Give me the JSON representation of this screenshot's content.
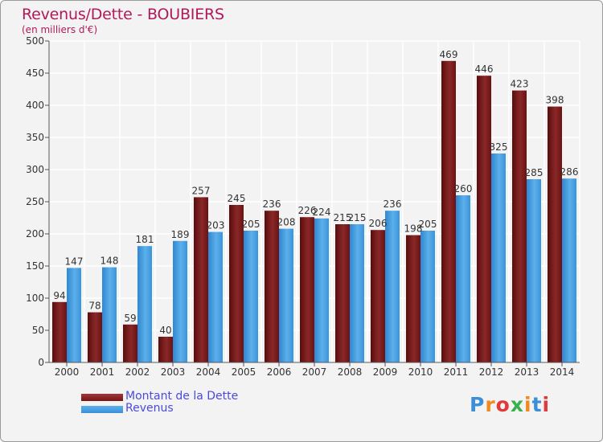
{
  "header": {
    "title": "Revenus/Dette - BOUBIERS",
    "subtitle": "(en milliers d'€)"
  },
  "logo": {
    "text": "Proxiti",
    "letters": [
      "P",
      "r",
      "o",
      "x",
      "i",
      "t",
      "i"
    ],
    "colors": [
      "#3a8fd8",
      "#f08a1c",
      "#e03a3a",
      "#3ab04a",
      "#f08a1c",
      "#3a8fd8",
      "#e03a3a"
    ]
  },
  "colors": {
    "debt": "#7a1414",
    "debt_light": "#9c3a3a",
    "revenue": "#3a8fd8",
    "revenue_light": "#5cb0ea",
    "title": "#b01a5a",
    "legend_text": "#4a4ae0"
  },
  "chart_data": {
    "type": "bar",
    "title": "Revenus/Dette - BOUBIERS",
    "subtitle": "(en milliers d'€)",
    "categories": [
      "2000",
      "2001",
      "2002",
      "2003",
      "2004",
      "2005",
      "2006",
      "2007",
      "2008",
      "2009",
      "2010",
      "2011",
      "2012",
      "2013",
      "2014"
    ],
    "series": [
      {
        "name": "Montant de la Dette",
        "values": [
          94,
          78,
          59,
          40,
          257,
          245,
          236,
          226,
          215,
          206,
          198,
          469,
          446,
          423,
          398
        ]
      },
      {
        "name": "Revenus",
        "values": [
          147,
          148,
          181,
          189,
          203,
          205,
          208,
          224,
          215,
          236,
          205,
          260,
          325,
          285,
          286
        ]
      }
    ],
    "ylim": [
      0,
      500
    ],
    "yticks": [
      0,
      50,
      100,
      150,
      200,
      250,
      300,
      350,
      400,
      450,
      500
    ],
    "grid": true,
    "legend_position": "bottom-left"
  }
}
